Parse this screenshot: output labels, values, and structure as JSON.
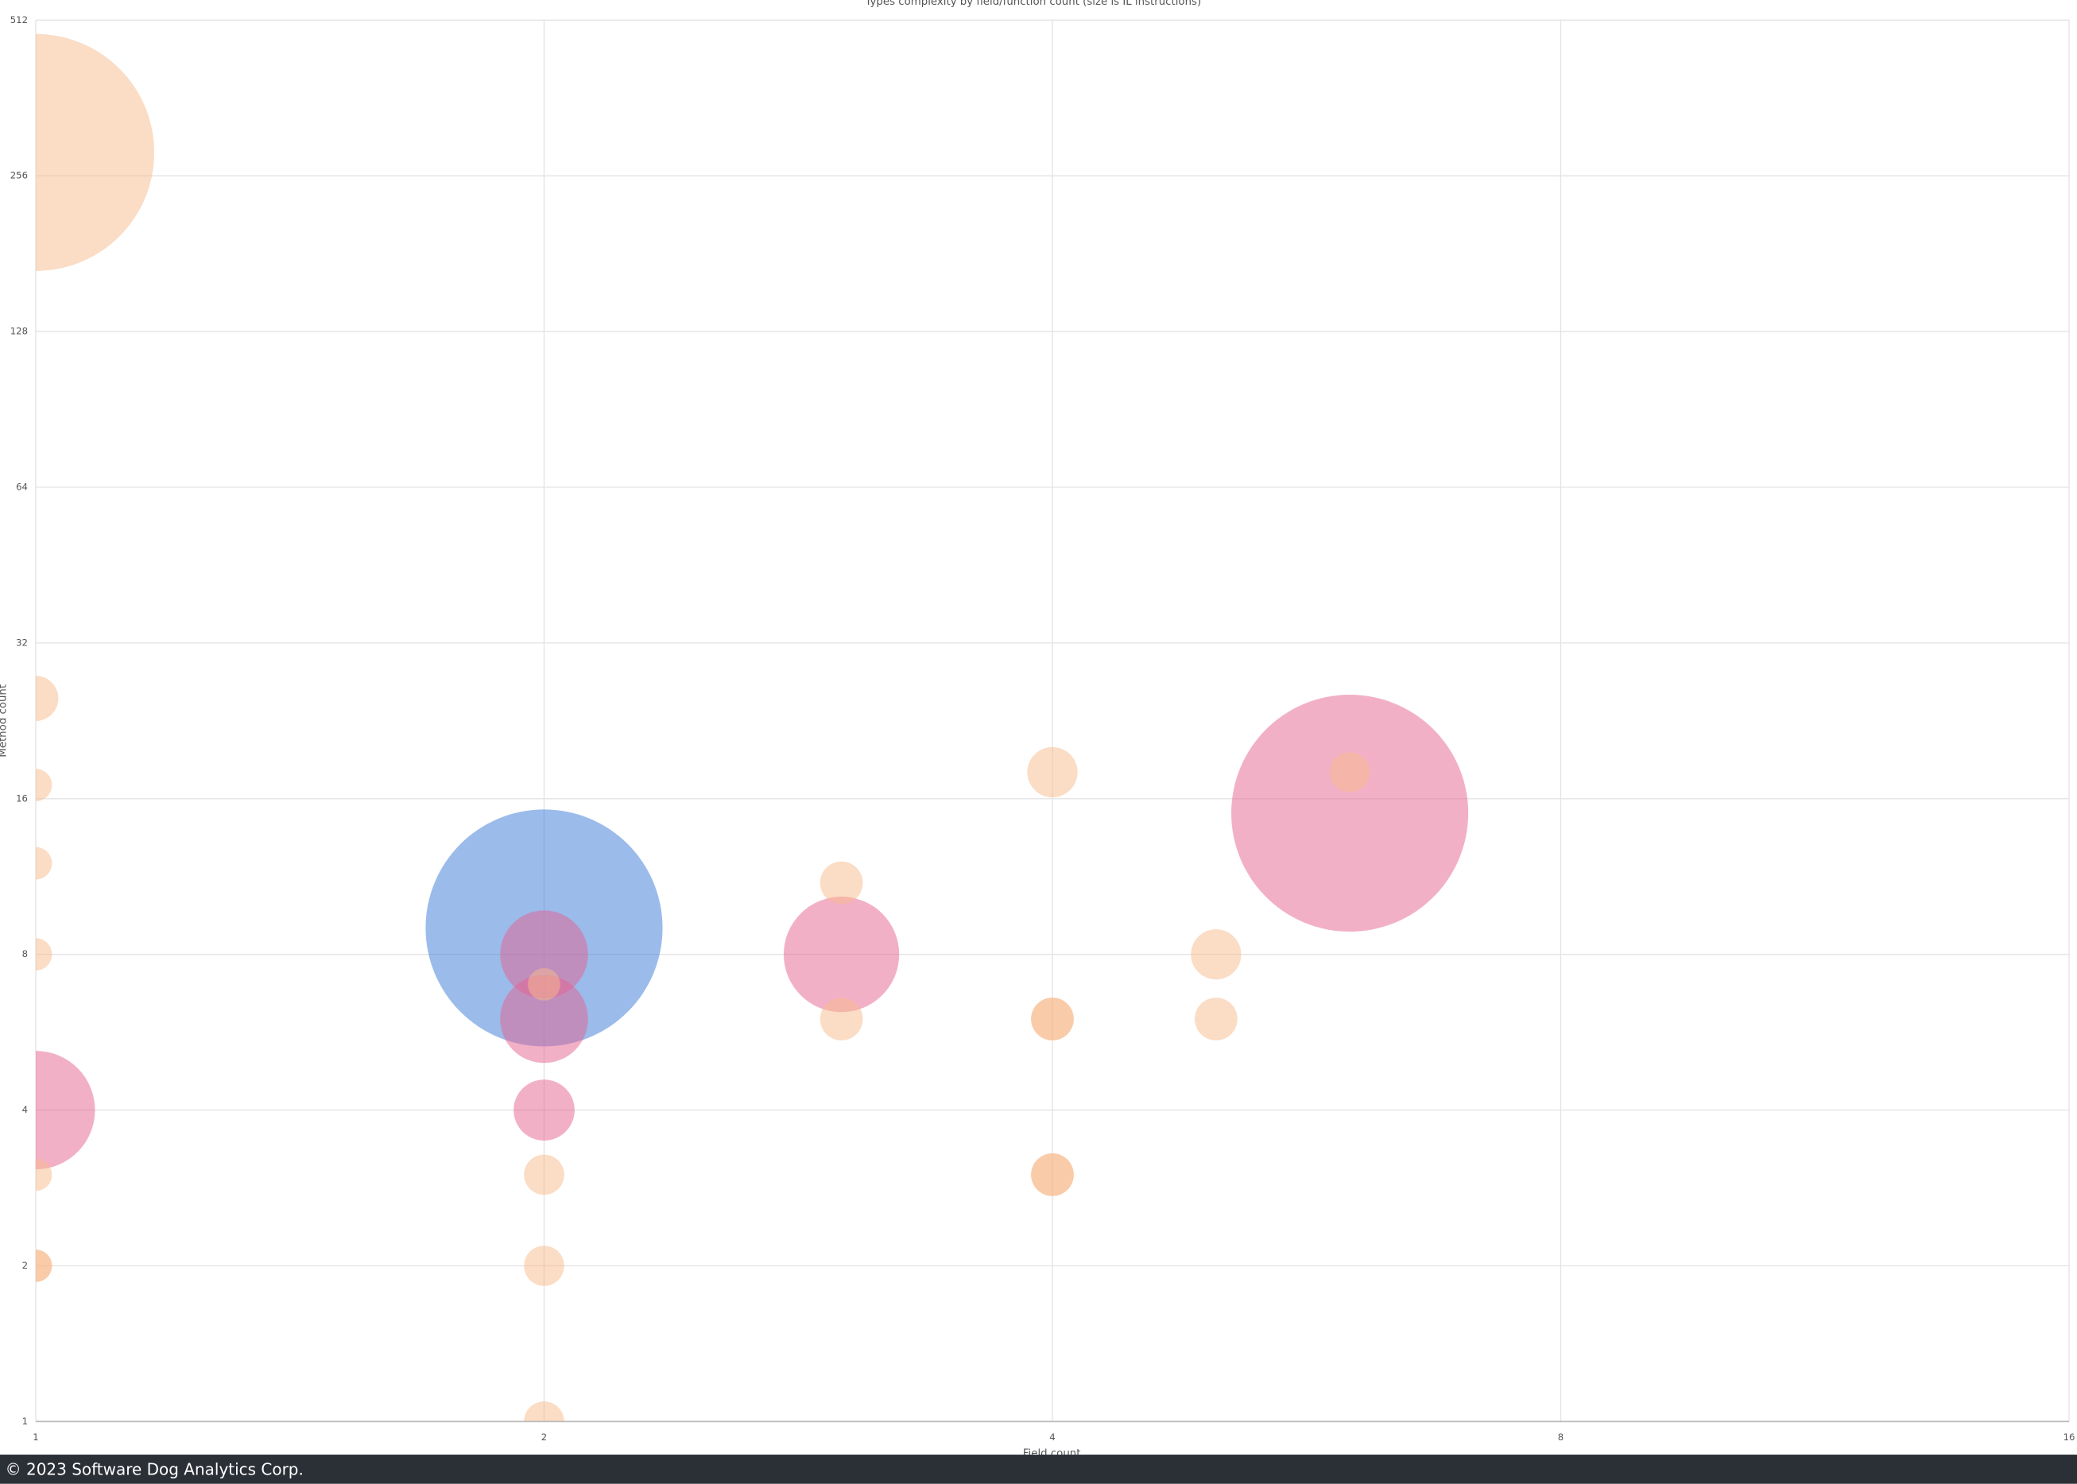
{
  "chart_data": {
    "type": "bubble",
    "title": "Types complexity by field/function count (size is IL instructions)",
    "x_label": "Field count",
    "y_label": "Method count",
    "log_base": 2,
    "grid": true,
    "xlim": [
      1,
      16
    ],
    "ylim": [
      1,
      512
    ],
    "xticks": [
      1,
      2,
      4,
      8,
      16
    ],
    "yticks": [
      1,
      2,
      4,
      8,
      16,
      32,
      64,
      128,
      256,
      512
    ],
    "series": [
      {
        "color": "#3878d6",
        "x": [
          2
        ],
        "values": [
          9
        ],
        "sizes": [
          8000
        ]
      },
      {
        "color": "#e6628f",
        "x": [
          1,
          2,
          2,
          2,
          3,
          6
        ],
        "values": [
          4,
          8,
          6,
          4,
          8,
          15
        ],
        "sizes": [
          2000,
          1100,
          1100,
          530,
          1900,
          8000
        ]
      },
      {
        "color": "#f7b98b",
        "x": [
          1,
          1,
          1,
          1,
          1,
          1,
          1,
          1,
          2,
          2,
          2,
          2,
          3,
          3,
          4,
          4,
          4,
          4,
          4,
          5,
          5,
          6
        ],
        "values": [
          284,
          25,
          17,
          12,
          8,
          3,
          2,
          2,
          7,
          3,
          2,
          1,
          11,
          6,
          18,
          6,
          6,
          3,
          3,
          8,
          6,
          18
        ],
        "sizes": [
          8000,
          290,
          150,
          150,
          150,
          150,
          150,
          150,
          150,
          230,
          230,
          230,
          260,
          260,
          360,
          260,
          260,
          260,
          260,
          360,
          260,
          230
        ]
      }
    ]
  },
  "footer": {
    "text": "© 2023 Software Dog Analytics Corp."
  }
}
